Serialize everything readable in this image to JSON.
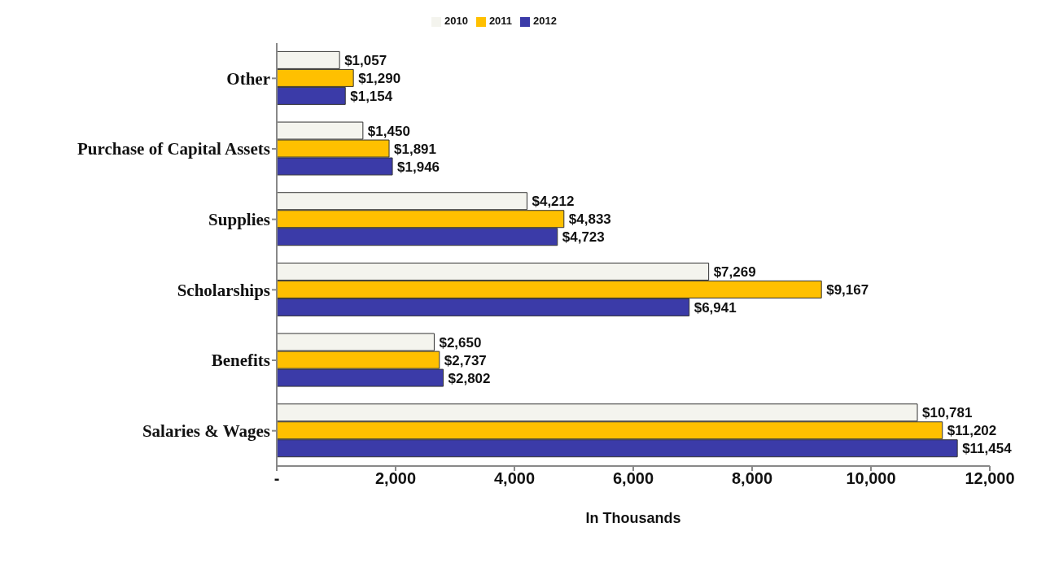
{
  "chart_data": {
    "type": "bar",
    "orientation": "horizontal",
    "xlabel": "In Thousands",
    "categories": [
      "Other",
      "Purchase of Capital Assets",
      "Supplies",
      "Scholarships",
      "Benefits",
      "Salaries & Wages"
    ],
    "series": [
      {
        "name": "2010",
        "color": "#f4f4ee",
        "values": [
          1057,
          1450,
          4212,
          7269,
          2650,
          10781
        ],
        "value_labels": [
          "$1,057",
          "$1,450",
          "$4,212",
          "$7,269",
          "$2,650",
          "$10,781"
        ]
      },
      {
        "name": "2011",
        "color": "#ffc000",
        "values": [
          1290,
          1891,
          4833,
          9167,
          2737,
          11202
        ],
        "value_labels": [
          "$1,290",
          "$1,891",
          "$4,833",
          "$9,167",
          "$2,737",
          "$11,202"
        ]
      },
      {
        "name": "2012",
        "color": "#3b3ba8",
        "values": [
          1154,
          1946,
          4723,
          6941,
          2802,
          11454
        ],
        "value_labels": [
          "$1,154",
          "$1,946",
          "$4,723",
          "$6,941",
          "$2,802",
          "$11,454"
        ]
      }
    ],
    "xlim": [
      0,
      12000
    ],
    "xticks": [
      {
        "value": 0,
        "label": "-"
      },
      {
        "value": 2000,
        "label": "2,000"
      },
      {
        "value": 4000,
        "label": "4,000"
      },
      {
        "value": 6000,
        "label": "6,000"
      },
      {
        "value": 8000,
        "label": "8,000"
      },
      {
        "value": 10000,
        "label": "10,000"
      },
      {
        "value": 12000,
        "label": "12,000"
      }
    ],
    "grid": false,
    "legend": "top"
  }
}
